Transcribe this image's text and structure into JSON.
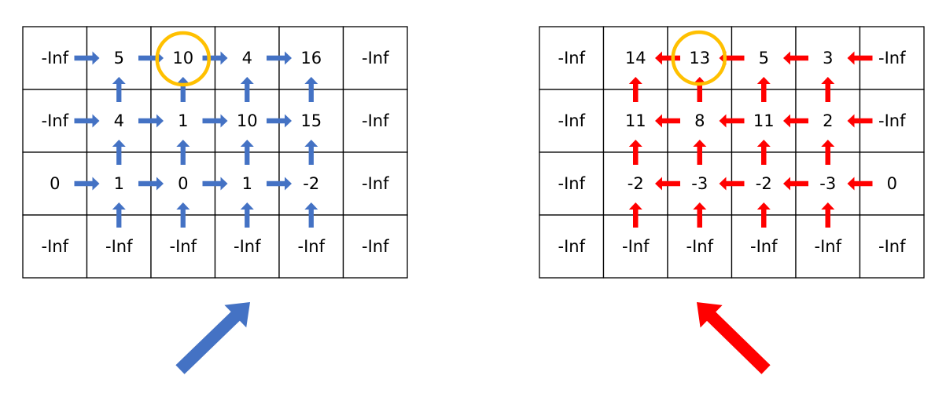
{
  "colors": {
    "left_arrow": "#4472C4",
    "right_arrow": "#FF0000",
    "highlight_circle": "#FFC000",
    "grid_line": "#000000"
  },
  "grids": [
    {
      "name": "left-dp-grid",
      "direction": "left-to-right",
      "arrow_color": "#4472C4",
      "cells": [
        [
          "-Inf",
          "5",
          "10",
          "4",
          "16",
          "-Inf"
        ],
        [
          "-Inf",
          "4",
          "1",
          "10",
          "15",
          "-Inf"
        ],
        [
          "0",
          "1",
          "0",
          "1",
          "-2",
          "-Inf"
        ],
        [
          "-Inf",
          "-Inf",
          "-Inf",
          "-Inf",
          "-Inf",
          "-Inf"
        ]
      ],
      "highlight": {
        "row": 0,
        "col": 2
      },
      "big_arrow_icon": "arrow-up-right-icon"
    },
    {
      "name": "right-dp-grid",
      "direction": "right-to-left",
      "arrow_color": "#FF0000",
      "cells": [
        [
          "-Inf",
          "14",
          "13",
          "5",
          "3",
          "-Inf"
        ],
        [
          "-Inf",
          "11",
          "8",
          "11",
          "2",
          "-Inf"
        ],
        [
          "-Inf",
          "-2",
          "-3",
          "-2",
          "-3",
          "0"
        ],
        [
          "-Inf",
          "-Inf",
          "-Inf",
          "-Inf",
          "-Inf",
          "-Inf"
        ]
      ],
      "highlight": {
        "row": 0,
        "col": 2
      },
      "big_arrow_icon": "arrow-up-left-icon"
    }
  ]
}
